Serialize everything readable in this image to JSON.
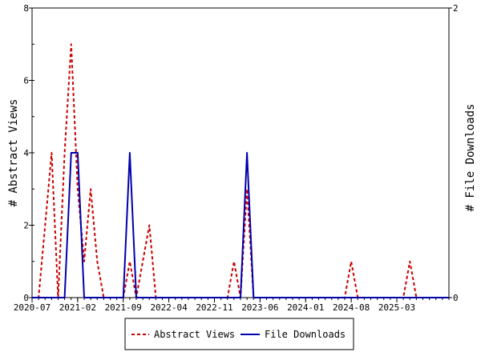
{
  "chart_data": {
    "type": "line",
    "title": "",
    "x_ticks": [
      "2020-07",
      "2021-02",
      "2021-09",
      "2022-04",
      "2022-11",
      "2023-06",
      "2024-01",
      "2024-08",
      "2025-03"
    ],
    "ylabel_left": "# Abstract Views",
    "ylabel_right": "# File Downloads",
    "ylim_left": [
      0,
      8
    ],
    "ylim_right": [
      0,
      2
    ],
    "yticks_left": [
      "0",
      "2",
      "4",
      "6",
      "8"
    ],
    "yticks_right": [
      "0",
      "2"
    ],
    "x_start": "2020-07",
    "x_end": "2025-11",
    "grid": false,
    "legend_position": "bottom",
    "series": [
      {
        "name": "Abstract Views",
        "axis": "left",
        "color": "#cc0000",
        "style": "dashed",
        "points": [
          [
            "2020-07",
            0
          ],
          [
            "2020-08",
            0
          ],
          [
            "2020-09",
            2
          ],
          [
            "2020-10",
            4
          ],
          [
            "2020-11",
            0
          ],
          [
            "2020-12",
            4
          ],
          [
            "2021-01",
            7
          ],
          [
            "2021-02",
            3
          ],
          [
            "2021-03",
            1
          ],
          [
            "2021-04",
            3
          ],
          [
            "2021-05",
            1
          ],
          [
            "2021-06",
            0
          ],
          [
            "2021-07",
            0
          ],
          [
            "2021-08",
            0
          ],
          [
            "2021-09",
            0
          ],
          [
            "2021-10",
            1
          ],
          [
            "2021-11",
            0
          ],
          [
            "2021-12",
            1
          ],
          [
            "2022-01",
            2
          ],
          [
            "2022-02",
            0
          ],
          [
            "2022-03",
            0
          ],
          [
            "2022-04",
            0
          ],
          [
            "2022-05",
            0
          ],
          [
            "2022-06",
            0
          ],
          [
            "2022-07",
            0
          ],
          [
            "2022-08",
            0
          ],
          [
            "2022-09",
            0
          ],
          [
            "2022-10",
            0
          ],
          [
            "2022-11",
            0
          ],
          [
            "2022-12",
            0
          ],
          [
            "2023-01",
            0
          ],
          [
            "2023-02",
            1
          ],
          [
            "2023-03",
            0
          ],
          [
            "2023-04",
            3
          ],
          [
            "2023-05",
            0
          ],
          [
            "2023-06",
            0
          ],
          [
            "2023-07",
            0
          ],
          [
            "2023-08",
            0
          ],
          [
            "2023-09",
            0
          ],
          [
            "2023-10",
            0
          ],
          [
            "2023-11",
            0
          ],
          [
            "2023-12",
            0
          ],
          [
            "2024-01",
            0
          ],
          [
            "2024-02",
            0
          ],
          [
            "2024-03",
            0
          ],
          [
            "2024-04",
            0
          ],
          [
            "2024-05",
            0
          ],
          [
            "2024-06",
            0
          ],
          [
            "2024-07",
            0
          ],
          [
            "2024-08",
            1
          ],
          [
            "2024-09",
            0
          ],
          [
            "2024-10",
            0
          ],
          [
            "2024-11",
            0
          ],
          [
            "2024-12",
            0
          ],
          [
            "2025-01",
            0
          ],
          [
            "2025-02",
            0
          ],
          [
            "2025-03",
            0
          ],
          [
            "2025-04",
            0
          ],
          [
            "2025-05",
            1
          ],
          [
            "2025-06",
            0
          ],
          [
            "2025-07",
            0
          ],
          [
            "2025-08",
            0
          ],
          [
            "2025-09",
            0
          ],
          [
            "2025-10",
            0
          ],
          [
            "2025-11",
            0
          ]
        ]
      },
      {
        "name": "File Downloads",
        "axis": "right",
        "color": "#0000aa",
        "style": "solid",
        "points": [
          [
            "2020-07",
            0
          ],
          [
            "2020-08",
            0
          ],
          [
            "2020-09",
            0
          ],
          [
            "2020-10",
            0
          ],
          [
            "2020-11",
            0
          ],
          [
            "2020-12",
            0
          ],
          [
            "2021-01",
            1
          ],
          [
            "2021-02",
            1
          ],
          [
            "2021-03",
            0
          ],
          [
            "2021-04",
            0
          ],
          [
            "2021-05",
            0
          ],
          [
            "2021-06",
            0
          ],
          [
            "2021-07",
            0
          ],
          [
            "2021-08",
            0
          ],
          [
            "2021-09",
            0
          ],
          [
            "2021-10",
            1
          ],
          [
            "2021-11",
            0
          ],
          [
            "2021-12",
            0
          ],
          [
            "2022-01",
            0
          ],
          [
            "2022-02",
            0
          ],
          [
            "2022-03",
            0
          ],
          [
            "2022-04",
            0
          ],
          [
            "2022-05",
            0
          ],
          [
            "2022-06",
            0
          ],
          [
            "2022-07",
            0
          ],
          [
            "2022-08",
            0
          ],
          [
            "2022-09",
            0
          ],
          [
            "2022-10",
            0
          ],
          [
            "2022-11",
            0
          ],
          [
            "2022-12",
            0
          ],
          [
            "2023-01",
            0
          ],
          [
            "2023-02",
            0
          ],
          [
            "2023-03",
            0
          ],
          [
            "2023-04",
            1
          ],
          [
            "2023-05",
            0
          ],
          [
            "2023-06",
            0
          ],
          [
            "2023-07",
            0
          ],
          [
            "2023-08",
            0
          ],
          [
            "2023-09",
            0
          ],
          [
            "2023-10",
            0
          ],
          [
            "2023-11",
            0
          ],
          [
            "2023-12",
            0
          ],
          [
            "2024-01",
            0
          ],
          [
            "2024-02",
            0
          ],
          [
            "2024-03",
            0
          ],
          [
            "2024-04",
            0
          ],
          [
            "2024-05",
            0
          ],
          [
            "2024-06",
            0
          ],
          [
            "2024-07",
            0
          ],
          [
            "2024-08",
            0
          ],
          [
            "2024-09",
            0
          ],
          [
            "2024-10",
            0
          ],
          [
            "2024-11",
            0
          ],
          [
            "2024-12",
            0
          ],
          [
            "2025-01",
            0
          ],
          [
            "2025-02",
            0
          ],
          [
            "2025-03",
            0
          ],
          [
            "2025-04",
            0
          ],
          [
            "2025-05",
            0
          ],
          [
            "2025-06",
            0
          ],
          [
            "2025-07",
            0
          ],
          [
            "2025-08",
            0
          ],
          [
            "2025-09",
            0
          ],
          [
            "2025-10",
            0
          ],
          [
            "2025-11",
            0
          ]
        ]
      }
    ]
  }
}
